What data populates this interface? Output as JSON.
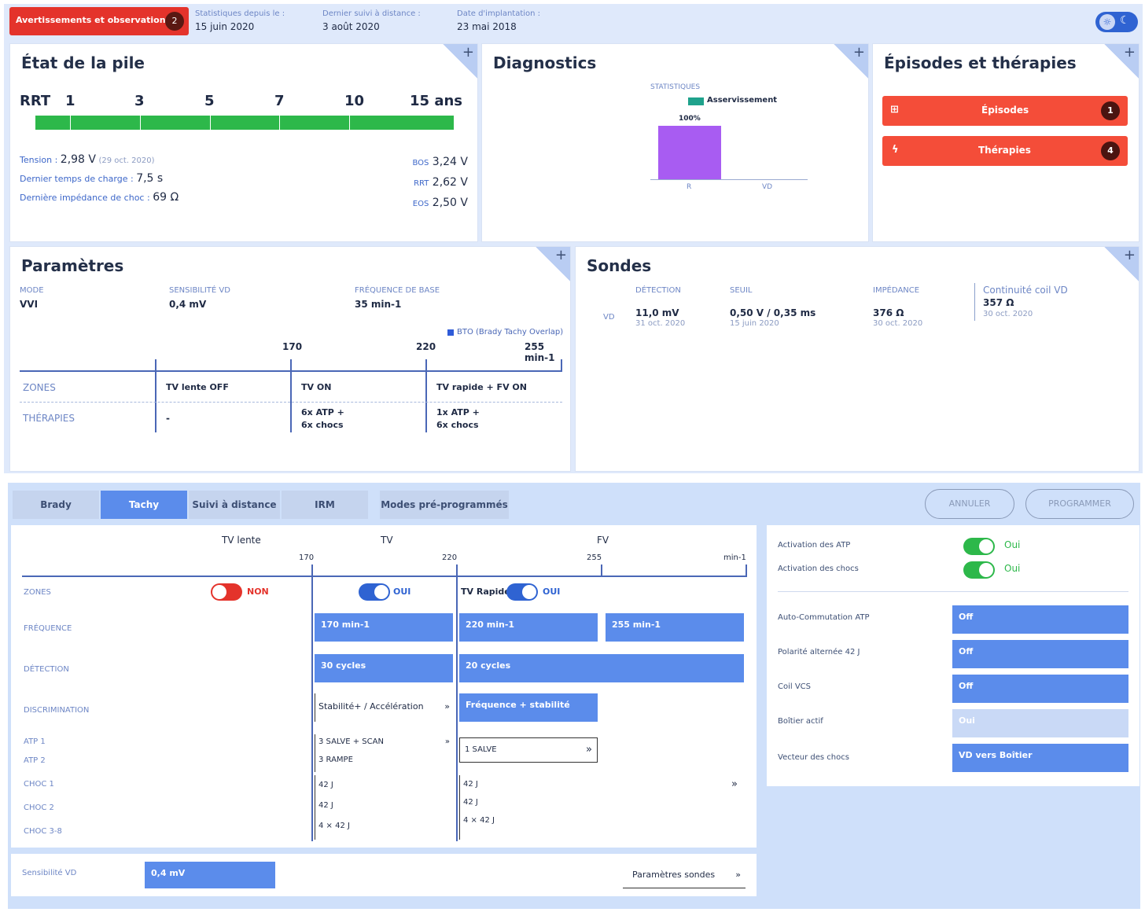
{
  "topbar": {
    "alert_label": "Avertissements et observations",
    "alert_count": "2",
    "stats_label": "Statistiques depuis le :",
    "stats_value": "15 juin 2020",
    "followup_label": "Dernier suivi à distance :",
    "followup_value": "3 août 2020",
    "implant_label": "Date d'implantation :",
    "implant_value": "23 mai 2018"
  },
  "battery": {
    "title": "État de la pile",
    "rrt_label": "RRT",
    "scale": [
      "1",
      "3",
      "5",
      "7",
      "10",
      "15 ans"
    ],
    "tension_label": "Tension :",
    "tension_value": "2,98 V",
    "tension_date": "(29 oct. 2020)",
    "charge_label": "Dernier temps de charge :",
    "charge_value": "7,5 s",
    "impedance_label": "Dernière impédance de choc :",
    "impedance_value": "69 Ω",
    "bos_label": "BOS",
    "bos_value": "3,24 V",
    "rrt2_label": "RRT",
    "rrt2_value": "2,62 V",
    "eos_label": "EOS",
    "eos_value": "2,50 V",
    "bar_color": "#2db84a"
  },
  "diagnostics": {
    "title": "Diagnostics",
    "stats_label": "STATISTIQUES",
    "legend": "Asservissement",
    "bar_label": "100%",
    "cat_r": "R",
    "cat_vd": "VD",
    "bar_color": "#a85cf2"
  },
  "episodes": {
    "title": "Épisodes et thérapies",
    "episodes_label": "Épisodes",
    "episodes_count": "1",
    "therapies_label": "Thérapies",
    "therapies_count": "4"
  },
  "params": {
    "title": "Paramètres",
    "mode_label": "MODE",
    "mode_value": "VVI",
    "sens_label": "SENSIBILITÉ VD",
    "sens_value": "0,4 mV",
    "freq_label": "FRÉQUENCE DE BASE",
    "freq_value": "35 min-1",
    "bto": "BTO (Brady Tachy Overlap)",
    "t170": "170",
    "t220": "220",
    "t255": "255 min-1",
    "zones_label": "ZONES",
    "z1": "TV lente OFF",
    "z2": "TV ON",
    "z3": "TV rapide + FV ON",
    "ther_label": "THÉRAPIES",
    "th1": "-",
    "th2a": "6x ATP  +",
    "th2b": "6x chocs",
    "th3a": "1x ATP  +",
    "th3b": "6x chocs"
  },
  "sondes": {
    "title": "Sondes",
    "det_label": "DÉTECTION",
    "seuil_label": "SEUIL",
    "imp_label": "IMPÉDANCE",
    "coil_label": "Continuité coil VD",
    "vd": "VD",
    "det_value": "11,0 mV",
    "det_date": "31 oct. 2020",
    "seuil_value": "0,50 V / 0,35 ms",
    "seuil_date": "15 juin 2020",
    "imp_value": "376 Ω",
    "imp_date": "30 oct. 2020",
    "coil_value": "357 Ω",
    "coil_date": "30 oct. 2020"
  },
  "tabs": [
    "Brady",
    "Tachy",
    "Suivi à distance",
    "IRM",
    "Modes pré-programmés"
  ],
  "actions": {
    "cancel": "ANNULER",
    "program": "PROGRAMMER"
  },
  "tachy": {
    "h_tvlente": "TV lente",
    "h_tv": "TV",
    "h_fv": "FV",
    "t170": "170",
    "t220": "220",
    "t255": "255",
    "unit": "min-1",
    "zones": "ZONES",
    "off": "NON",
    "on": "OUI",
    "tvrapide": "TV Rapide",
    "on2": "OUI",
    "freq": "FRÉQUENCE",
    "f1": "170 min-1",
    "f2": "220 min-1",
    "f3": "255 min-1",
    "detect": "DÉTECTION",
    "d1": "30 cycles",
    "d2": "20 cycles",
    "discr": "DISCRIMINATION",
    "dc1": "Stabilité+ / Accélération",
    "dc2": "Fréquence + stabilité",
    "atp1": "ATP 1",
    "atp2": "ATP 2",
    "atp1v": "3 SALVE + SCAN",
    "atp2v": "3 RAMPE",
    "atp1v2": "1 SALVE",
    "choc1": "CHOC 1",
    "choc2": "CHOC 2",
    "choc3": "CHOC 3-8",
    "c1": "42 J",
    "c2": "42 J",
    "c3": "4 × 42 J",
    "c1b": "42 J",
    "c2b": "42 J",
    "c3b": "4 × 42 J",
    "sens_label": "Sensibilité VD",
    "sens_value": "0,4 mV",
    "sondes_btn": "Paramètres sondes"
  },
  "right": {
    "atp_label": "Activation des ATP",
    "atp_value": "Oui",
    "choc_label": "Activation des chocs",
    "choc_value": "Oui",
    "auto_label": "Auto-Commutation ATP",
    "auto_value": "Off",
    "polar_label": "Polarité alternée 42 J",
    "polar_value": "Off",
    "cable_label": "Coil VCS",
    "cable_value": "Off",
    "boitier_label": "Boîtier actif",
    "boitier_value": "Oui",
    "vector_label": "Vecteur des chocs",
    "vector_value": "VD vers Boîtier"
  }
}
